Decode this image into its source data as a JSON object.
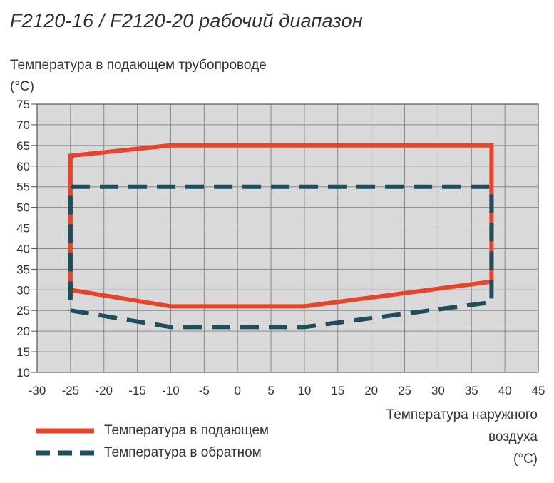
{
  "chart_data": {
    "type": "line",
    "title": "F2120-16 / F2120-20 рабочий диапазон",
    "ylabel_lines": [
      "Температура в подающем трубопроводе",
      "(°C)"
    ],
    "xlabel_lines": [
      "Температура наружного",
      "воздуха",
      "(°C)"
    ],
    "xlim": [
      -30,
      45
    ],
    "ylim": [
      10,
      75
    ],
    "x_ticks": [
      -30,
      -25,
      -20,
      -15,
      -10,
      -5,
      0,
      5,
      10,
      15,
      20,
      25,
      30,
      35,
      40,
      45
    ],
    "y_ticks": [
      10,
      15,
      20,
      25,
      30,
      35,
      40,
      45,
      50,
      55,
      60,
      65,
      70,
      75
    ],
    "grid": true,
    "legend_position": "bottom-left",
    "series": [
      {
        "name": "Температура в подающем",
        "color": "#e8442c",
        "style": "solid",
        "points": [
          [
            -25,
            30
          ],
          [
            -10,
            26
          ],
          [
            10,
            26
          ],
          [
            38,
            32
          ],
          [
            38,
            65
          ],
          [
            -10,
            65
          ],
          [
            -25,
            62.5
          ],
          [
            -25,
            30
          ]
        ]
      },
      {
        "name": "Температура в обратном",
        "color": "#1e4d5c",
        "style": "dashed",
        "points": [
          [
            -25,
            25
          ],
          [
            -10,
            21
          ],
          [
            10,
            21
          ],
          [
            38,
            27
          ],
          [
            38,
            55
          ],
          [
            -25,
            55
          ],
          [
            -25,
            25
          ]
        ]
      }
    ]
  }
}
